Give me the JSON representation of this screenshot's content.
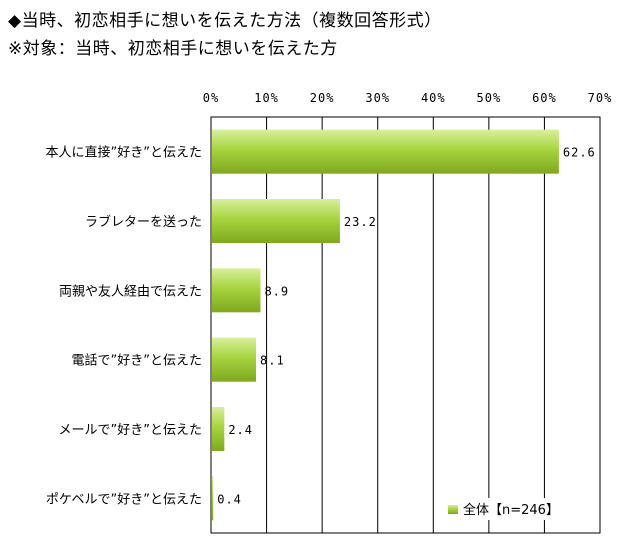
{
  "header": {
    "title": "◆当時、初恋相手に想いを伝えた方法（複数回答形式）",
    "subtitle": "※対象：当時、初恋相手に想いを伝えた方"
  },
  "chart_data": {
    "type": "bar",
    "orientation": "horizontal",
    "categories": [
      "本人に直接”好き”と伝えた",
      "ラブレターを送った",
      "両親や友人経由で伝えた",
      "電話で”好き”と伝えた",
      "メールで”好き”と伝えた",
      "ポケベルで”好き”と伝えた"
    ],
    "series": [
      {
        "name": "全体【n=246】",
        "values": [
          62.6,
          23.2,
          8.9,
          8.1,
          2.4,
          0.4
        ]
      }
    ],
    "value_labels": [
      "62.6",
      "23.2",
      "8.9",
      "8.1",
      "2.4",
      "0.4"
    ],
    "xlim": [
      0,
      70
    ],
    "xticks": [
      "0%",
      "10%",
      "20%",
      "30%",
      "40%",
      "50%",
      "60%",
      "70%"
    ],
    "tick_values": [
      0,
      10,
      20,
      30,
      40,
      50,
      60,
      70
    ],
    "grid": true,
    "legend": "bottom-right",
    "colors": {
      "bar_light": "#d9ef9c",
      "bar_mid": "#a7d43f",
      "bar_dark": "#7fa81e",
      "grid": "#000000"
    }
  }
}
